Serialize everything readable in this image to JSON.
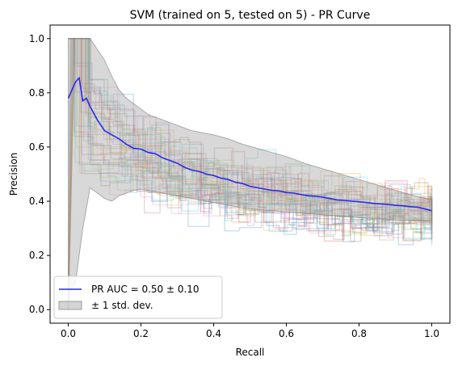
{
  "chart_data": {
    "type": "line",
    "title": "SVM (trained on 5, tested on 5) -  PR Curve",
    "xlabel": "Recall",
    "ylabel": "Precision",
    "xlim": [
      -0.05,
      1.05
    ],
    "ylim": [
      -0.05,
      1.05
    ],
    "xticks": [
      "0.0",
      "0.2",
      "0.4",
      "0.6",
      "0.8",
      "1.0"
    ],
    "yticks": [
      "0.0",
      "0.2",
      "0.4",
      "0.6",
      "0.8",
      "1.0"
    ],
    "grid": false,
    "legend": {
      "placement": "lower-left",
      "entries": [
        "PR AUC = 0.50 ± 0.10",
        "± 1 std. dev."
      ]
    },
    "colors": {
      "mean": "#2a2af0",
      "band": "#a9a9a9",
      "folds": [
        "#1f77b4",
        "#ff7f0e",
        "#2ca02c",
        "#d62728",
        "#9467bd",
        "#8c564b",
        "#e377c2",
        "#7f7f7f",
        "#bcbd22",
        "#17becf"
      ]
    },
    "series": [
      {
        "name": "PR AUC = 0.50 ± 0.10",
        "x": [
          0.0,
          0.01,
          0.02,
          0.03,
          0.04,
          0.05,
          0.06,
          0.08,
          0.1,
          0.12,
          0.14,
          0.16,
          0.18,
          0.2,
          0.22,
          0.24,
          0.26,
          0.28,
          0.3,
          0.32,
          0.34,
          0.36,
          0.38,
          0.4,
          0.42,
          0.44,
          0.46,
          0.48,
          0.5,
          0.52,
          0.54,
          0.56,
          0.58,
          0.6,
          0.62,
          0.64,
          0.66,
          0.68,
          0.7,
          0.72,
          0.74,
          0.76,
          0.78,
          0.8,
          0.82,
          0.84,
          0.86,
          0.88,
          0.9,
          0.92,
          0.94,
          0.96,
          0.98,
          1.0
        ],
        "y": [
          0.78,
          0.81,
          0.84,
          0.855,
          0.77,
          0.78,
          0.75,
          0.7,
          0.66,
          0.645,
          0.63,
          0.61,
          0.595,
          0.592,
          0.58,
          0.575,
          0.56,
          0.55,
          0.54,
          0.525,
          0.515,
          0.51,
          0.5,
          0.495,
          0.485,
          0.48,
          0.47,
          0.465,
          0.455,
          0.45,
          0.445,
          0.44,
          0.438,
          0.432,
          0.43,
          0.425,
          0.42,
          0.418,
          0.415,
          0.41,
          0.405,
          0.403,
          0.4,
          0.398,
          0.395,
          0.392,
          0.39,
          0.388,
          0.385,
          0.383,
          0.38,
          0.378,
          0.372,
          0.365
        ]
      },
      {
        "name": "± 1 std. dev.",
        "x": [
          0.0,
          0.02,
          0.04,
          0.06,
          0.08,
          0.1,
          0.12,
          0.14,
          0.16,
          0.18,
          0.2,
          0.22,
          0.24,
          0.26,
          0.28,
          0.3,
          0.32,
          0.34,
          0.36,
          0.38,
          0.4,
          0.44,
          0.48,
          0.52,
          0.56,
          0.6,
          0.65,
          0.7,
          0.75,
          0.8,
          0.85,
          0.9,
          0.95,
          1.0
        ],
        "upper": [
          1.0,
          1.0,
          1.0,
          1.0,
          0.96,
          0.92,
          0.86,
          0.81,
          0.78,
          0.76,
          0.74,
          0.72,
          0.71,
          0.7,
          0.69,
          0.68,
          0.67,
          0.66,
          0.655,
          0.65,
          0.645,
          0.63,
          0.61,
          0.595,
          0.58,
          0.565,
          0.54,
          0.52,
          0.5,
          0.48,
          0.46,
          0.44,
          0.42,
          0.405
        ],
        "lower": [
          0.05,
          0.1,
          0.3,
          0.45,
          0.43,
          0.41,
          0.4,
          0.42,
          0.43,
          0.44,
          0.445,
          0.44,
          0.435,
          0.43,
          0.425,
          0.42,
          0.415,
          0.41,
          0.405,
          0.4,
          0.395,
          0.385,
          0.375,
          0.37,
          0.365,
          0.36,
          0.355,
          0.35,
          0.345,
          0.34,
          0.335,
          0.33,
          0.328,
          0.325
        ]
      }
    ]
  }
}
